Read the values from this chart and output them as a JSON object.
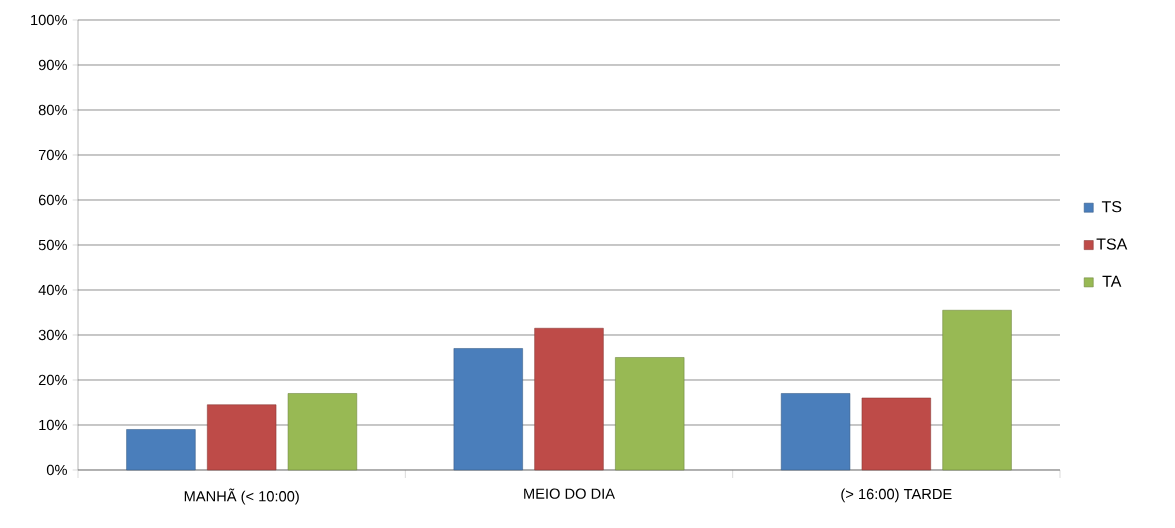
{
  "chart_data": {
    "type": "bar",
    "categories": [
      "MANHÃ (< 10:00)",
      "MEIO DO DIA",
      "(> 16:00) TARDE"
    ],
    "series": [
      {
        "name": "TS",
        "color": "#4a7ebb",
        "values": [
          9,
          27,
          17
        ]
      },
      {
        "name": "TSA",
        "color": "#be4b48",
        "values": [
          14.5,
          31.5,
          16
        ]
      },
      {
        "name": "TA",
        "color": "#98b954",
        "values": [
          17,
          25,
          35.5
        ]
      }
    ],
    "ylim": [
      0,
      100
    ],
    "yticks": [
      {
        "value": 0,
        "label": "0%"
      },
      {
        "value": 10,
        "label": "10%"
      },
      {
        "value": 20,
        "label": "20%"
      },
      {
        "value": 30,
        "label": "30%"
      },
      {
        "value": 40,
        "label": "40%"
      },
      {
        "value": 50,
        "label": "50%"
      },
      {
        "value": 60,
        "label": "60%"
      },
      {
        "value": 70,
        "label": "70%"
      },
      {
        "value": 80,
        "label": "80%"
      },
      {
        "value": 90,
        "label": "90%"
      },
      {
        "value": 100,
        "label": "100%"
      }
    ],
    "grid": "y",
    "legend": "right"
  }
}
